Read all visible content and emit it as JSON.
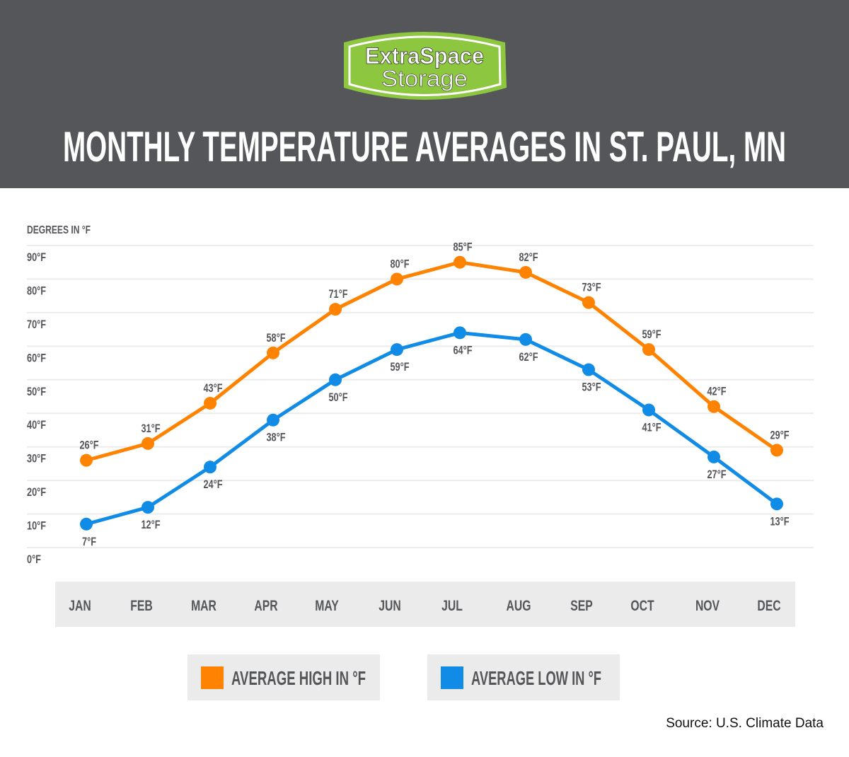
{
  "header": {
    "logo_line1": "ExtraSpace",
    "logo_line2": "Storage",
    "title": "MONTHLY TEMPERATURE AVERAGES IN ST. PAUL, MN",
    "background": "#55565a",
    "logo_green": "#8dc63f"
  },
  "chart_data": {
    "type": "line",
    "title": "MONTHLY TEMPERATURE AVERAGES IN ST. PAUL, MN",
    "ylabel": "DEGREES IN °F",
    "xlabel": "",
    "ylim": [
      0,
      90
    ],
    "yticks": [
      "0°F",
      "10°F",
      "20°F",
      "30°F",
      "40°F",
      "50°F",
      "60°F",
      "70°F",
      "80°F",
      "90°F"
    ],
    "grid": true,
    "categories": [
      "JAN",
      "FEB",
      "MAR",
      "APR",
      "MAY",
      "JUN",
      "JUL",
      "AUG",
      "SEP",
      "OCT",
      "NOV",
      "DEC"
    ],
    "series": [
      {
        "name": "AVERAGE HIGH IN °F",
        "color": "#ff8200",
        "values": [
          26,
          31,
          43,
          58,
          71,
          80,
          85,
          82,
          73,
          59,
          42,
          29
        ]
      },
      {
        "name": "AVERAGE LOW IN °F",
        "color": "#118ce6",
        "values": [
          7,
          12,
          24,
          38,
          50,
          59,
          64,
          62,
          53,
          41,
          27,
          13
        ]
      }
    ],
    "legend": "bottom"
  },
  "source": "Source: U.S. Climate Data"
}
